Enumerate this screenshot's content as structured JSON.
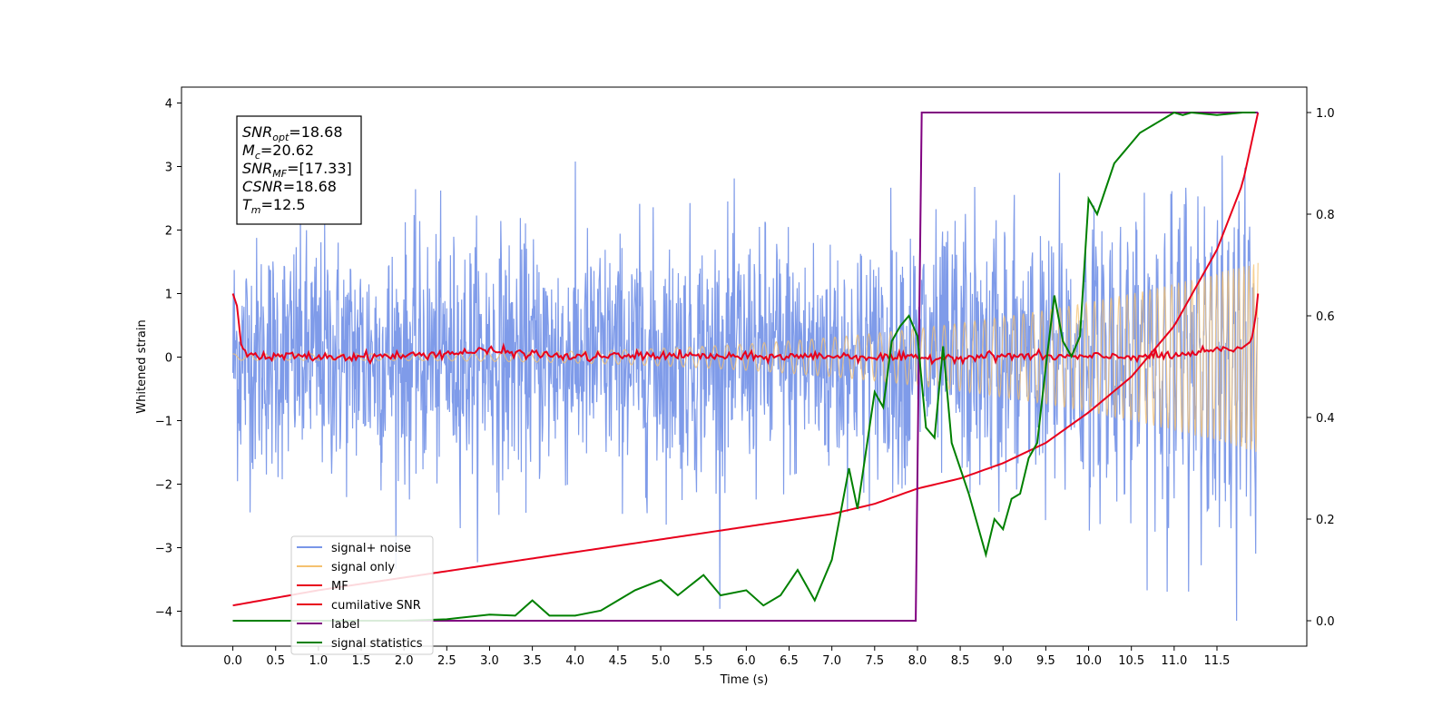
{
  "chart_data": {
    "type": "line",
    "xlabel": "Time (s)",
    "ylabel": "Whitened strain",
    "xlim": [
      -0.6,
      12.55
    ],
    "ylim": [
      -4.55,
      4.25
    ],
    "y2lim": [
      -0.05,
      1.05
    ],
    "grid": false,
    "legend_position": "lower-left",
    "x_ticks": [
      "0.0",
      "0.5",
      "1.0",
      "1.5",
      "2.0",
      "2.5",
      "3.0",
      "3.5",
      "4.0",
      "4.5",
      "5.0",
      "5.5",
      "6.0",
      "6.5",
      "7.0",
      "7.5",
      "8.0",
      "8.5",
      "9.0",
      "9.5",
      "10.0",
      "10.5",
      "11.0",
      "11.5"
    ],
    "y_ticks": [
      "4",
      "3",
      "2",
      "1",
      "0",
      "−1",
      "−2",
      "−3",
      "−4"
    ],
    "y2_ticks": [
      "1.0",
      "0.8",
      "0.6",
      "0.4",
      "0.2",
      "0.0"
    ],
    "annotation": [
      {
        "base": "SNR",
        "sub": "opt",
        "value": "=18.68"
      },
      {
        "base": "M",
        "sub": "c",
        "value": "=20.62"
      },
      {
        "base": "SNR",
        "sub": "MF",
        "value": "=[17.33]"
      },
      {
        "base": "CSNR",
        "sub": "",
        "value": "=18.68"
      },
      {
        "base": "T",
        "sub": "m",
        "value": "=12.5"
      }
    ],
    "series": [
      {
        "name": "signal+ noise",
        "color": "#7896e8",
        "axis": "left",
        "x_range": [
          0,
          11.98
        ],
        "noise_sigma": 0.95,
        "y_range": [
          -4.15,
          3.45
        ]
      },
      {
        "name": "signal only",
        "color": "#f5c16f",
        "axis": "left",
        "x_range": [
          0,
          11.98
        ],
        "amplitude_start": 0.05,
        "amplitude_end": 1.5
      },
      {
        "name": "MF",
        "color": "#e8001c",
        "axis": "left",
        "x": [
          0,
          0.05,
          0.1,
          0.2,
          0.4,
          0.6,
          1,
          2,
          3,
          4,
          5,
          6,
          7,
          8,
          9,
          10,
          11,
          11.8,
          11.9,
          11.95,
          11.98
        ],
        "y": [
          1.0,
          0.8,
          0.15,
          0.05,
          -0.02,
          0.02,
          0.0,
          0.02,
          0.1,
          0.0,
          0.03,
          0.0,
          0.02,
          -0.02,
          0.02,
          0.0,
          0.02,
          0.15,
          0.25,
          0.6,
          1.0
        ]
      },
      {
        "name": "cumilative SNR",
        "color": "#e8001c",
        "axis": "right",
        "x": [
          0,
          0.5,
          1,
          2,
          3,
          4,
          5,
          6,
          7,
          7.5,
          8,
          8.5,
          9,
          9.5,
          10,
          10.5,
          11,
          11.5,
          11.8,
          11.98
        ],
        "y": [
          0.03,
          0.045,
          0.06,
          0.085,
          0.11,
          0.135,
          0.16,
          0.185,
          0.21,
          0.23,
          0.26,
          0.28,
          0.31,
          0.35,
          0.41,
          0.48,
          0.58,
          0.73,
          0.86,
          1.0
        ]
      },
      {
        "name": "label",
        "color": "#800080",
        "axis": "right",
        "x": [
          0,
          7.98,
          8.05,
          11.98
        ],
        "y": [
          0,
          0,
          1,
          1
        ]
      },
      {
        "name": "signal statistics",
        "color": "#008000",
        "axis": "right",
        "x": [
          0,
          1,
          2,
          2.5,
          3,
          3.3,
          3.5,
          3.7,
          4,
          4.3,
          4.5,
          4.7,
          5,
          5.2,
          5.5,
          5.7,
          6,
          6.2,
          6.4,
          6.6,
          6.8,
          7,
          7.2,
          7.3,
          7.5,
          7.6,
          7.7,
          7.8,
          7.9,
          8,
          8.1,
          8.2,
          8.3,
          8.4,
          8.6,
          8.8,
          8.9,
          9,
          9.1,
          9.2,
          9.3,
          9.4,
          9.5,
          9.6,
          9.7,
          9.8,
          9.9,
          10,
          10.1,
          10.2,
          10.3,
          10.4,
          10.5,
          10.6,
          10.7,
          10.8,
          10.9,
          11,
          11.1,
          11.2,
          11.5,
          11.8,
          11.95
        ],
        "y": [
          0,
          0,
          0,
          0.003,
          0.012,
          0.01,
          0.04,
          0.01,
          0.01,
          0.02,
          0.04,
          0.06,
          0.08,
          0.05,
          0.09,
          0.05,
          0.06,
          0.03,
          0.05,
          0.1,
          0.04,
          0.12,
          0.3,
          0.22,
          0.45,
          0.42,
          0.55,
          0.58,
          0.6,
          0.56,
          0.38,
          0.36,
          0.54,
          0.35,
          0.25,
          0.13,
          0.2,
          0.18,
          0.24,
          0.25,
          0.32,
          0.35,
          0.5,
          0.64,
          0.55,
          0.52,
          0.56,
          0.83,
          0.8,
          0.85,
          0.9,
          0.92,
          0.94,
          0.96,
          0.97,
          0.98,
          0.99,
          1.0,
          0.995,
          1.0,
          0.995,
          1.0,
          1.0
        ]
      }
    ]
  }
}
